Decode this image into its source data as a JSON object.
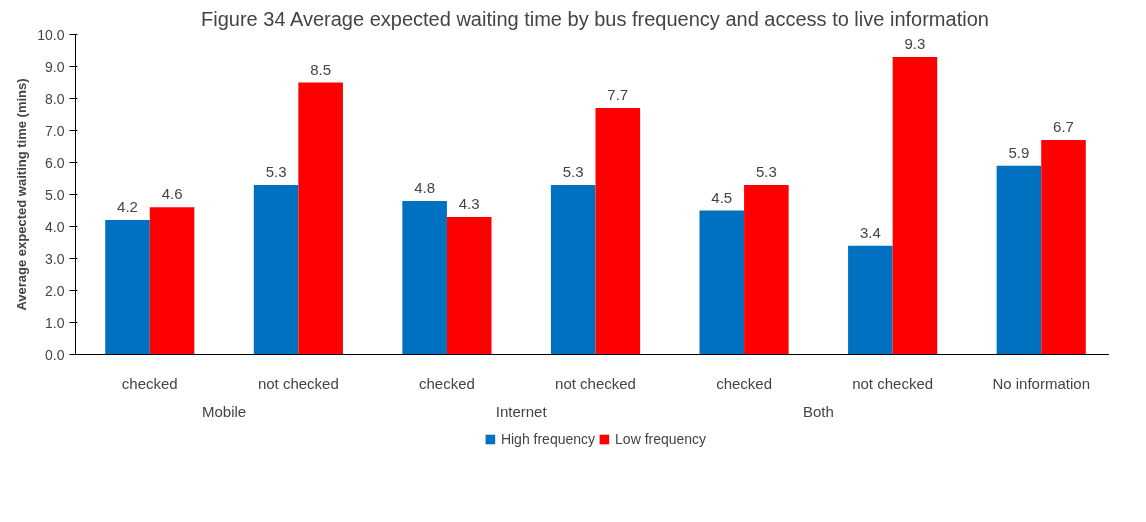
{
  "chart_data": {
    "type": "bar",
    "title": "Figure 34 Average expected waiting time by bus frequency and access to live information",
    "ylabel": "Average expected waiting time (mins)",
    "categories": [
      "checked",
      "not checked",
      "checked",
      "not checked",
      "checked",
      "not checked",
      "No information"
    ],
    "annotations": [
      "Mobile",
      "Internet",
      "Both"
    ],
    "series": [
      {
        "name": "High frequency",
        "color": "#0070c0",
        "values": [
          4.2,
          5.3,
          4.8,
          5.3,
          4.5,
          3.4,
          5.9
        ]
      },
      {
        "name": "Low frequency",
        "color": "#ff0000",
        "values": [
          4.6,
          8.5,
          4.3,
          7.7,
          5.3,
          9.3,
          6.7
        ]
      }
    ],
    "ylim": [
      0,
      10
    ],
    "yticks": [
      {
        "value": 0,
        "label": "0.0"
      },
      {
        "value": 1,
        "label": "1.0"
      },
      {
        "value": 2,
        "label": "2.0"
      },
      {
        "value": 3,
        "label": "3.0"
      },
      {
        "value": 4,
        "label": "4.0"
      },
      {
        "value": 5,
        "label": "5.0"
      },
      {
        "value": 6,
        "label": "6.0"
      },
      {
        "value": 7,
        "label": "7.0"
      },
      {
        "value": 8,
        "label": "8.0"
      },
      {
        "value": 9,
        "label": "9.0"
      },
      {
        "value": 10,
        "label": "10.0"
      }
    ],
    "data_labels": true,
    "grid": false,
    "legend": "bottom"
  }
}
